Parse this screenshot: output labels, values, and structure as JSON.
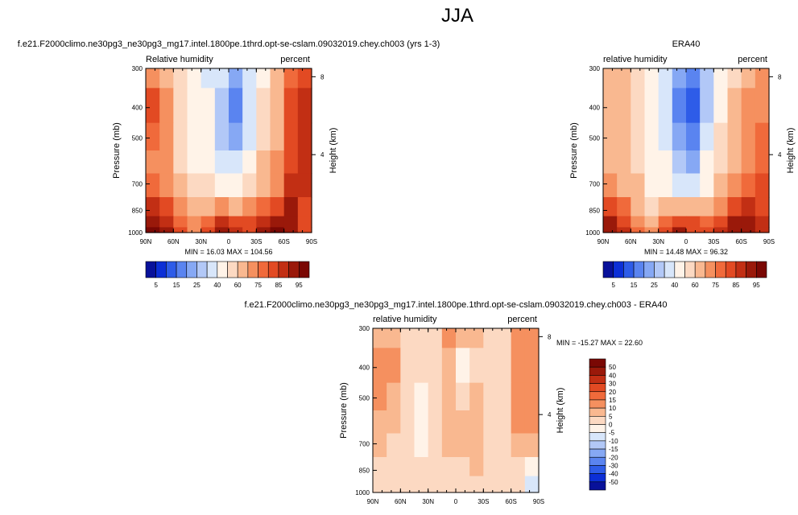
{
  "page_title": "JJA",
  "chart_data": [
    {
      "type": "heatmap",
      "title": "f.e21.F2000climo.ne30pg3_ne30pg3_mg17.intel.1800pe.1thrd.opt-se-cslam.09032019.chey.ch003 (yrs 1-3)",
      "left_label": "Relative humidity",
      "right_label": "percent",
      "xlabel": "",
      "ylabel": "Pressure (mb)",
      "y2label": "Height (km)",
      "xticks": [
        "90N",
        "60N",
        "30N",
        "0",
        "30S",
        "60S",
        "90S"
      ],
      "yticks": [
        "300",
        "400",
        "500",
        "700",
        "850",
        "1000"
      ],
      "y2ticks": [
        "8",
        "4"
      ],
      "stats": "MIN = 16.03   MAX = 104.56",
      "colorbar": {
        "orientation": "horizontal",
        "labels": [
          "5",
          "15",
          "25",
          "40",
          "60",
          "75",
          "85",
          "95"
        ],
        "colors": [
          "#08119a",
          "#0c2fd6",
          "#2e5ce8",
          "#5a84f0",
          "#86a8f4",
          "#b2c8f7",
          "#d8e6fa",
          "#fff3e8",
          "#fcd9c2",
          "#f9b890",
          "#f5905f",
          "#f06a3b",
          "#e24a23",
          "#c22f14",
          "#9a190a",
          "#7a0804"
        ]
      },
      "rows": [
        {
          "p": 300,
          "values": [
            72,
            66,
            52,
            42,
            38,
            30,
            22,
            32,
            48,
            60,
            78,
            84
          ]
        },
        {
          "p": 400,
          "values": [
            80,
            72,
            58,
            44,
            40,
            26,
            18,
            30,
            50,
            64,
            80,
            86
          ]
        },
        {
          "p": 500,
          "values": [
            76,
            70,
            56,
            42,
            40,
            28,
            20,
            36,
            54,
            66,
            82,
            88
          ]
        },
        {
          "p": 600,
          "values": [
            74,
            70,
            58,
            44,
            42,
            36,
            30,
            46,
            60,
            70,
            84,
            88
          ]
        },
        {
          "p": 700,
          "values": [
            78,
            72,
            62,
            50,
            50,
            46,
            42,
            54,
            66,
            74,
            86,
            86
          ]
        },
        {
          "p": 850,
          "values": [
            86,
            80,
            70,
            62,
            64,
            70,
            66,
            70,
            78,
            84,
            90,
            80
          ]
        },
        {
          "p": 925,
          "values": [
            92,
            86,
            76,
            70,
            78,
            86,
            84,
            80,
            86,
            92,
            92,
            80
          ]
        },
        {
          "p": 1000,
          "values": [
            96,
            90,
            80,
            74,
            82,
            94,
            86,
            82,
            90,
            96,
            94,
            80
          ]
        }
      ]
    },
    {
      "type": "heatmap",
      "title": "ERA40",
      "left_label": "relative humidity",
      "right_label": "percent",
      "xlabel": "",
      "ylabel": "Pressure (mb)",
      "y2label": "Height (km)",
      "xticks": [
        "90N",
        "60N",
        "30N",
        "0",
        "30S",
        "60S",
        "90S"
      ],
      "yticks": [
        "300",
        "400",
        "500",
        "700",
        "850",
        "1000"
      ],
      "y2ticks": [
        "8",
        "4"
      ],
      "stats": "MIN = 14.48   MAX = 96.32",
      "colorbar": {
        "orientation": "horizontal",
        "labels": [
          "5",
          "15",
          "25",
          "40",
          "60",
          "75",
          "85",
          "95"
        ],
        "colors": [
          "#08119a",
          "#0c2fd6",
          "#2e5ce8",
          "#5a84f0",
          "#86a8f4",
          "#b2c8f7",
          "#d8e6fa",
          "#fff3e8",
          "#fcd9c2",
          "#f9b890",
          "#f5905f",
          "#f06a3b",
          "#e24a23",
          "#c22f14",
          "#9a190a",
          "#7a0804"
        ]
      },
      "rows": [
        {
          "p": 300,
          "values": [
            64,
            60,
            52,
            40,
            36,
            20,
            16,
            26,
            44,
            56,
            66,
            70
          ]
        },
        {
          "p": 400,
          "values": [
            68,
            62,
            54,
            42,
            38,
            18,
            14,
            26,
            46,
            60,
            70,
            74
          ]
        },
        {
          "p": 500,
          "values": [
            66,
            62,
            54,
            40,
            38,
            20,
            16,
            30,
            50,
            62,
            72,
            76
          ]
        },
        {
          "p": 600,
          "values": [
            68,
            64,
            56,
            42,
            40,
            28,
            24,
            40,
            56,
            66,
            74,
            78
          ]
        },
        {
          "p": 700,
          "values": [
            72,
            68,
            60,
            48,
            48,
            38,
            34,
            48,
            62,
            70,
            78,
            80
          ]
        },
        {
          "p": 850,
          "values": [
            82,
            76,
            68,
            58,
            62,
            66,
            62,
            64,
            74,
            80,
            86,
            84
          ]
        },
        {
          "p": 925,
          "values": [
            90,
            84,
            74,
            66,
            76,
            84,
            80,
            76,
            84,
            90,
            90,
            86
          ]
        },
        {
          "p": 1000,
          "values": [
            94,
            88,
            78,
            70,
            80,
            92,
            84,
            80,
            88,
            94,
            92,
            88
          ]
        }
      ]
    },
    {
      "type": "heatmap",
      "title": "f.e21.F2000climo.ne30pg3_ne30pg3_mg17.intel.1800pe.1thrd.opt-se-cslam.09032019.chey.ch003 - ERA40",
      "left_label": "relative humidity",
      "right_label": "percent",
      "xlabel": "",
      "ylabel": "Pressure (mb)",
      "y2label": "Height (km)",
      "xticks": [
        "90N",
        "60N",
        "30N",
        "0",
        "30S",
        "60S",
        "90S"
      ],
      "yticks": [
        "300",
        "400",
        "500",
        "700",
        "850",
        "1000"
      ],
      "y2ticks": [
        "8",
        "4"
      ],
      "stats": "MIN = -15.27   MAX = 22.60",
      "colorbar": {
        "orientation": "vertical",
        "labels": [
          "50",
          "40",
          "30",
          "20",
          "15",
          "10",
          "5",
          "0",
          "-5",
          "-10",
          "-15",
          "-20",
          "-30",
          "-40",
          "-50"
        ],
        "colors": [
          "#7a0804",
          "#9a190a",
          "#c22f14",
          "#e24a23",
          "#f06a3b",
          "#f5905f",
          "#f9b890",
          "#fcd9c2",
          "#fff3e8",
          "#d8e6fa",
          "#b2c8f7",
          "#86a8f4",
          "#5a84f0",
          "#2e5ce8",
          "#0c2fd6",
          "#08119a"
        ]
      },
      "rows": [
        {
          "p": 300,
          "values": [
            8,
            6,
            2,
            2,
            2,
            10,
            6,
            6,
            4,
            4,
            12,
            14
          ]
        },
        {
          "p": 400,
          "values": [
            12,
            10,
            4,
            2,
            2,
            8,
            -2,
            4,
            4,
            4,
            10,
            12
          ]
        },
        {
          "p": 500,
          "values": [
            10,
            8,
            2,
            -2,
            2,
            8,
            4,
            6,
            4,
            4,
            10,
            12
          ]
        },
        {
          "p": 600,
          "values": [
            6,
            6,
            2,
            -2,
            2,
            8,
            6,
            6,
            4,
            4,
            10,
            10
          ]
        },
        {
          "p": 700,
          "values": [
            6,
            4,
            2,
            -2,
            2,
            8,
            8,
            6,
            4,
            4,
            8,
            6
          ]
        },
        {
          "p": 850,
          "values": [
            4,
            4,
            2,
            4,
            2,
            4,
            4,
            6,
            4,
            4,
            4,
            -4
          ]
        },
        {
          "p": 925,
          "values": [
            2,
            2,
            2,
            4,
            2,
            2,
            4,
            4,
            2,
            2,
            2,
            -6
          ]
        },
        {
          "p": 1000,
          "values": [
            2,
            2,
            2,
            4,
            2,
            2,
            2,
            2,
            2,
            2,
            2,
            -8
          ]
        }
      ]
    }
  ]
}
